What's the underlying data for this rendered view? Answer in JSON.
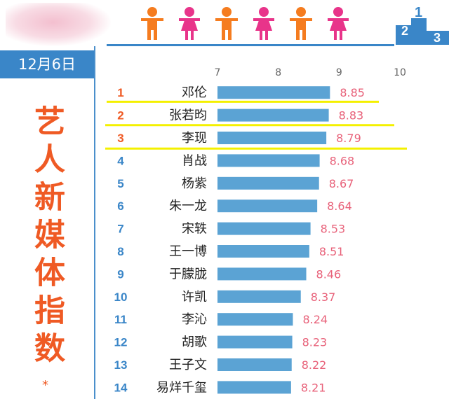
{
  "date_label": "12月6日",
  "title": "艺人新媒体指数",
  "title_mark": "*",
  "colors": {
    "accent_blue": "#3a86c8",
    "bar": "#5ba3d4",
    "title_orange": "#ef5a24",
    "value_pink": "#e8627a",
    "rank_top": "#ef5a24",
    "rank_other": "#3a86c8",
    "highlight": "#f4f000",
    "person_orange": "#f57c1f",
    "person_pink": "#e8348a"
  },
  "decorations": {
    "people_icons": [
      "male-orange",
      "female-pink",
      "male-orange",
      "female-pink",
      "male-orange",
      "female-pink"
    ],
    "podium_numbers": [
      "2",
      "1",
      "3"
    ]
  },
  "chart_data": {
    "type": "bar",
    "orientation": "horizontal",
    "categories": [
      "邓伦",
      "张若昀",
      "李现",
      "肖战",
      "杨紫",
      "朱一龙",
      "宋轶",
      "王一博",
      "于朦胧",
      "许凯",
      "李沁",
      "胡歌",
      "王子文",
      "易烊千玺"
    ],
    "ranks": [
      "1",
      "2",
      "3",
      "4",
      "5",
      "6",
      "7",
      "8",
      "9",
      "10",
      "11",
      "12",
      "13",
      "14"
    ],
    "values": [
      8.85,
      8.83,
      8.79,
      8.68,
      8.67,
      8.64,
      8.53,
      8.51,
      8.46,
      8.37,
      8.24,
      8.23,
      8.22,
      8.21
    ],
    "value_labels": [
      "8.85",
      "8.83",
      "8.79",
      "8.68",
      "8.67",
      "8.64",
      "8.53",
      "8.51",
      "8.46",
      "8.37",
      "8.24",
      "8.23",
      "8.22",
      "8.21"
    ],
    "xlim": [
      7,
      10
    ],
    "x_ticks": [
      "7",
      "8",
      "9",
      "10"
    ],
    "highlighted_ranks": [
      1,
      2,
      3
    ],
    "grid": false,
    "legend": "none"
  }
}
